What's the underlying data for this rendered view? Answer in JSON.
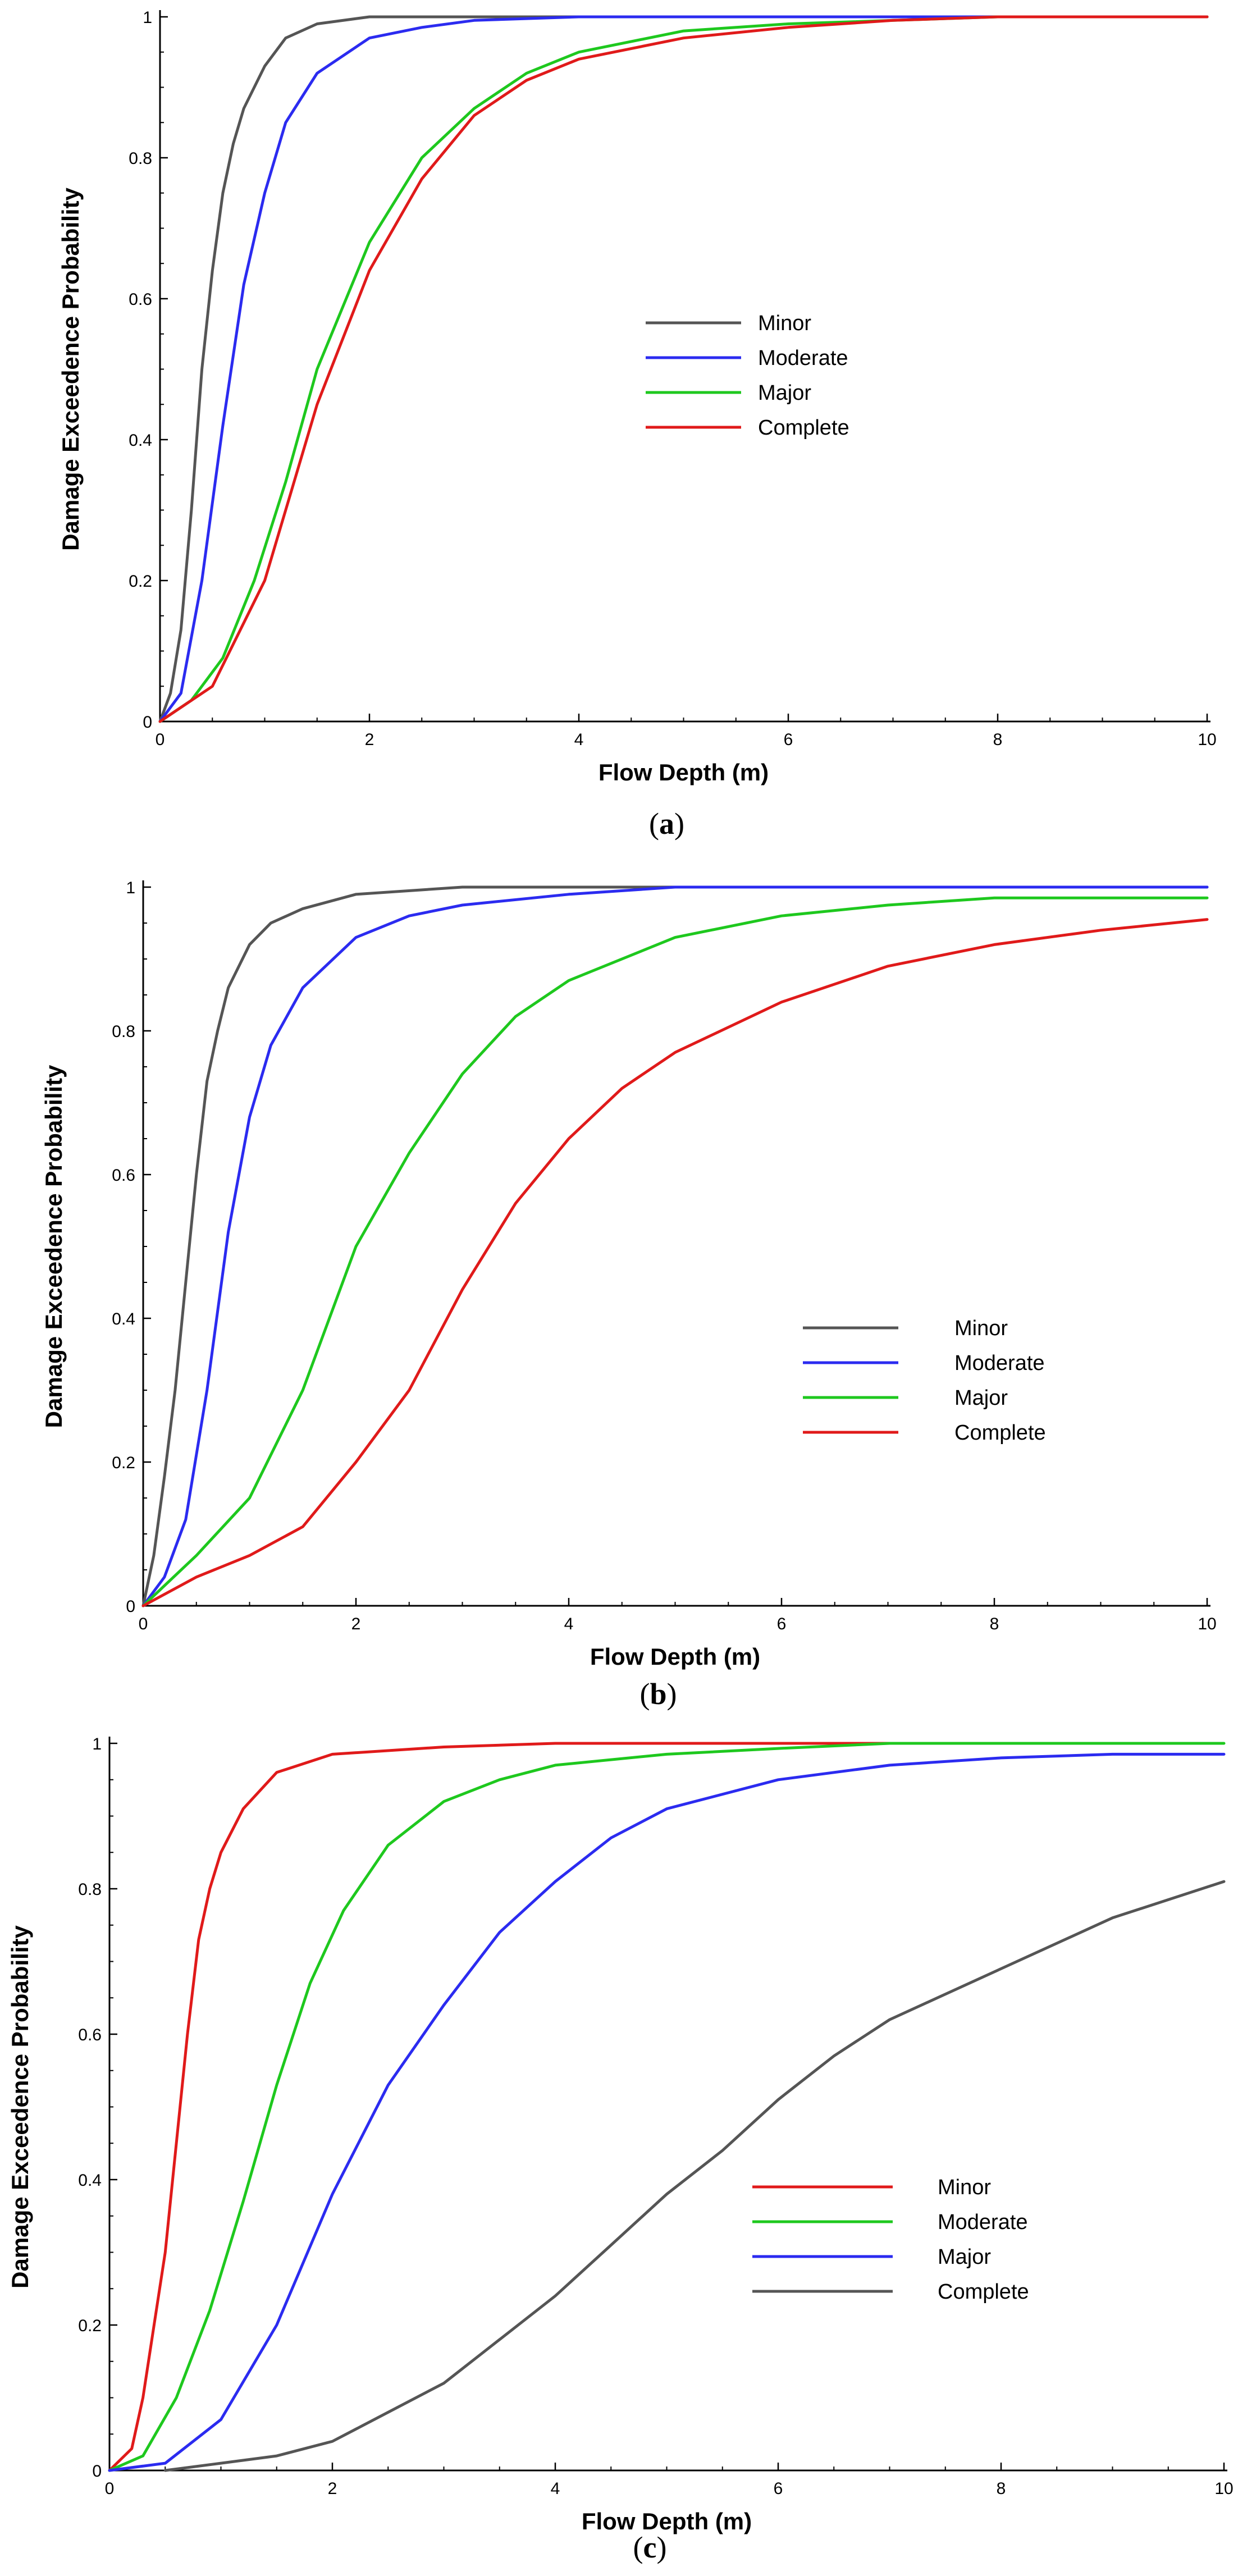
{
  "chart_data": [
    {
      "type": "line",
      "panel": "(a)",
      "caption_open": "(",
      "caption_letter": "a",
      "caption_close": ")",
      "xlabel": "Flow Depth (m)",
      "ylabel": "Damage Exceedence Probability",
      "xlim": [
        0,
        10
      ],
      "ylim": [
        0,
        1
      ],
      "xticks": [
        "0",
        "2",
        "4",
        "6",
        "8",
        "10"
      ],
      "yticks": [
        "0",
        "0.2",
        "0.4",
        "0.6",
        "0.8",
        "1"
      ],
      "legend_position": "center-right",
      "series": [
        {
          "name": "Minor",
          "color": "#555555",
          "x": [
            0,
            0.1,
            0.2,
            0.3,
            0.4,
            0.5,
            0.6,
            0.7,
            0.8,
            1.0,
            1.2,
            1.5,
            2.0,
            3.0,
            10.0
          ],
          "y": [
            0,
            0.04,
            0.13,
            0.3,
            0.5,
            0.64,
            0.75,
            0.82,
            0.87,
            0.93,
            0.97,
            0.99,
            1.0,
            1.0,
            1.0
          ]
        },
        {
          "name": "Moderate",
          "color": "#2b2bf0",
          "x": [
            0,
            0.2,
            0.4,
            0.6,
            0.8,
            1.0,
            1.2,
            1.5,
            2.0,
            2.5,
            3.0,
            4.0,
            5.0,
            10.0
          ],
          "y": [
            0,
            0.04,
            0.2,
            0.42,
            0.62,
            0.75,
            0.85,
            0.92,
            0.97,
            0.985,
            0.995,
            1.0,
            1.0,
            1.0
          ]
        },
        {
          "name": "Major",
          "color": "#1ec81e",
          "x": [
            0,
            0.3,
            0.6,
            0.9,
            1.2,
            1.5,
            2.0,
            2.5,
            3.0,
            3.5,
            4.0,
            5.0,
            6.0,
            8.0,
            10.0
          ],
          "y": [
            0,
            0.03,
            0.09,
            0.2,
            0.34,
            0.5,
            0.68,
            0.8,
            0.87,
            0.92,
            0.95,
            0.98,
            0.99,
            1.0,
            1.0
          ]
        },
        {
          "name": "Complete",
          "color": "#e01a1a",
          "x": [
            0,
            0.5,
            1.0,
            1.5,
            2.0,
            2.5,
            3.0,
            3.5,
            4.0,
            5.0,
            6.0,
            7.0,
            8.0,
            10.0
          ],
          "y": [
            0,
            0.05,
            0.2,
            0.45,
            0.64,
            0.77,
            0.86,
            0.91,
            0.94,
            0.97,
            0.985,
            0.995,
            1.0,
            1.0
          ]
        }
      ]
    },
    {
      "type": "line",
      "panel": "(b)",
      "caption_open": "(",
      "caption_letter": "b",
      "caption_close": ")",
      "xlabel": "Flow Depth (m)",
      "ylabel": "Damage Exceedence Probability",
      "xlim": [
        0,
        10
      ],
      "ylim": [
        0,
        1
      ],
      "xticks": [
        "0",
        "2",
        "4",
        "6",
        "8",
        "10"
      ],
      "yticks": [
        "0",
        "0.2",
        "0.4",
        "0.6",
        "0.8",
        "1"
      ],
      "legend_position": "lower-right",
      "series": [
        {
          "name": "Minor",
          "color": "#555555",
          "x": [
            0,
            0.1,
            0.2,
            0.3,
            0.4,
            0.5,
            0.6,
            0.7,
            0.8,
            1.0,
            1.2,
            1.5,
            2.0,
            3.0,
            4.0,
            10.0
          ],
          "y": [
            0,
            0.07,
            0.18,
            0.3,
            0.45,
            0.6,
            0.73,
            0.8,
            0.86,
            0.92,
            0.95,
            0.97,
            0.99,
            1.0,
            1.0,
            1.0
          ]
        },
        {
          "name": "Moderate",
          "color": "#2b2bf0",
          "x": [
            0,
            0.2,
            0.4,
            0.6,
            0.8,
            1.0,
            1.2,
            1.5,
            2.0,
            2.5,
            3.0,
            4.0,
            5.0,
            10.0
          ],
          "y": [
            0,
            0.04,
            0.12,
            0.3,
            0.52,
            0.68,
            0.78,
            0.86,
            0.93,
            0.96,
            0.975,
            0.99,
            1.0,
            1.0
          ]
        },
        {
          "name": "Major",
          "color": "#1ec81e",
          "x": [
            0,
            0.5,
            1.0,
            1.5,
            2.0,
            2.5,
            3.0,
            3.5,
            4.0,
            5.0,
            6.0,
            7.0,
            8.0,
            10.0
          ],
          "y": [
            0,
            0.07,
            0.15,
            0.3,
            0.5,
            0.63,
            0.74,
            0.82,
            0.87,
            0.93,
            0.96,
            0.975,
            0.985,
            0.985
          ]
        },
        {
          "name": "Complete",
          "color": "#e01a1a",
          "x": [
            0,
            0.5,
            1.0,
            1.5,
            2.0,
            2.5,
            3.0,
            3.5,
            4.0,
            4.5,
            5.0,
            6.0,
            7.0,
            8.0,
            9.0,
            10.0
          ],
          "y": [
            0,
            0.04,
            0.07,
            0.11,
            0.2,
            0.3,
            0.44,
            0.56,
            0.65,
            0.72,
            0.77,
            0.84,
            0.89,
            0.92,
            0.94,
            0.955
          ]
        }
      ]
    },
    {
      "type": "line",
      "panel": "(c)",
      "caption_open": "(",
      "caption_letter": "c",
      "caption_close": ")",
      "xlabel": "Flow Depth (m)",
      "ylabel": "Damage Exceedence Probability",
      "xlim": [
        0,
        10
      ],
      "ylim": [
        0,
        1
      ],
      "xticks": [
        "0",
        "2",
        "4",
        "6",
        "8",
        "10"
      ],
      "yticks": [
        "0",
        "0.2",
        "0.4",
        "0.6",
        "0.8",
        "1"
      ],
      "legend_position": "lower-right",
      "series": [
        {
          "name": "Minor",
          "color": "#e01a1a",
          "x": [
            0,
            0.2,
            0.3,
            0.4,
            0.5,
            0.6,
            0.7,
            0.8,
            0.9,
            1.0,
            1.2,
            1.5,
            2.0,
            3.0,
            4.0,
            7.0
          ],
          "y": [
            0,
            0.03,
            0.1,
            0.2,
            0.3,
            0.45,
            0.6,
            0.73,
            0.8,
            0.85,
            0.91,
            0.96,
            0.985,
            0.995,
            1.0,
            1.0
          ]
        },
        {
          "name": "Moderate",
          "color": "#1ec81e",
          "x": [
            0,
            0.3,
            0.6,
            0.9,
            1.2,
            1.5,
            1.8,
            2.1,
            2.5,
            3.0,
            3.5,
            4.0,
            5.0,
            6.0,
            7.0,
            10.0
          ],
          "y": [
            0,
            0.02,
            0.1,
            0.22,
            0.37,
            0.53,
            0.67,
            0.77,
            0.86,
            0.92,
            0.95,
            0.97,
            0.985,
            0.993,
            1.0,
            1.0
          ]
        },
        {
          "name": "Major",
          "color": "#2b2bf0",
          "x": [
            0,
            0.5,
            1.0,
            1.5,
            2.0,
            2.5,
            3.0,
            3.5,
            4.0,
            4.5,
            5.0,
            6.0,
            7.0,
            8.0,
            9.0,
            10.0
          ],
          "y": [
            0,
            0.01,
            0.07,
            0.2,
            0.38,
            0.53,
            0.64,
            0.74,
            0.81,
            0.87,
            0.91,
            0.95,
            0.97,
            0.98,
            0.985,
            0.985
          ]
        },
        {
          "name": "Complete",
          "color": "#555555",
          "x": [
            0.5,
            1.0,
            1.5,
            2.0,
            2.5,
            3.0,
            3.5,
            4.0,
            4.5,
            5.0,
            5.5,
            6.0,
            6.5,
            7.0,
            8.0,
            9.0,
            10.0
          ],
          "y": [
            0,
            0.01,
            0.02,
            0.04,
            0.08,
            0.12,
            0.18,
            0.24,
            0.31,
            0.38,
            0.44,
            0.51,
            0.57,
            0.62,
            0.69,
            0.76,
            0.81
          ]
        }
      ]
    }
  ]
}
